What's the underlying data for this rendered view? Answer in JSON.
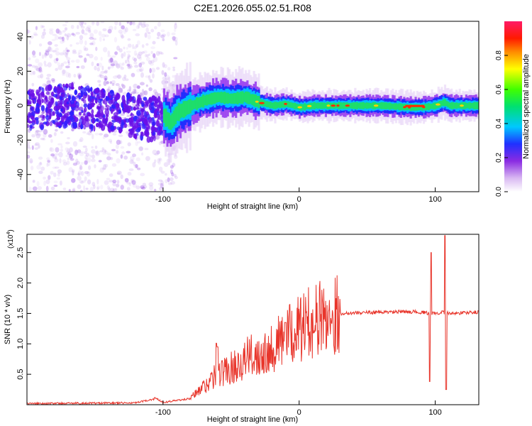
{
  "title": "C2E1.2026.055.02.51.R08",
  "chart_data": [
    {
      "type": "heatmap",
      "name": "spectrogram",
      "xlabel": "Height of straight line (km)",
      "ylabel": "Frequency (Hz)",
      "xlim": [
        -200,
        132
      ],
      "ylim": [
        -50,
        49
      ],
      "xticks": [
        -100,
        0,
        100
      ],
      "yticks": [
        -40,
        -20,
        0,
        20,
        40
      ],
      "colorbar": {
        "label": "Normalized spectral amplitude",
        "range": [
          0,
          1
        ],
        "ticks": [
          0.0,
          0.2,
          0.4,
          0.6,
          0.8
        ]
      },
      "ridge": {
        "description": "dominant frequency track",
        "x": [
          -200,
          -170,
          -140,
          -120,
          -110,
          -100,
          -95,
          -90,
          -80,
          -70,
          -60,
          -50,
          -40,
          -30,
          -20,
          -10,
          0,
          10,
          20,
          40,
          60,
          80,
          90,
          100,
          106,
          110,
          120,
          132
        ],
        "y": [
          -2,
          0,
          -2,
          -6,
          -8,
          -6,
          -10,
          -4,
          0,
          3,
          5,
          4,
          5,
          2,
          0,
          1,
          -1,
          0,
          0,
          0,
          0,
          -1,
          -1,
          0,
          2,
          0,
          0,
          0
        ]
      }
    },
    {
      "type": "line",
      "name": "snr",
      "xlabel": "Height of straight line (km)",
      "ylabel": "SNR (10 * v/v)",
      "yscale_label": "(x10",
      "yscale_exp": "4",
      "xlim": [
        -200,
        132
      ],
      "ylim": [
        0,
        2.8
      ],
      "xticks": [
        -100,
        0,
        100
      ],
      "yticks": [
        0.5,
        1.0,
        1.5,
        2.0,
        2.5
      ],
      "ytick_labels": [
        "0.5",
        "1.0",
        "1.5",
        "2.0",
        "2.5"
      ],
      "color": "#e8352b",
      "envelope_x": [
        -200,
        -120,
        -105,
        -100,
        -80,
        -75,
        -70,
        -60,
        -50,
        -40,
        -30,
        -20,
        -10,
        0,
        10,
        20,
        30,
        40,
        60,
        80,
        90,
        95,
        100,
        105,
        110,
        120,
        132
      ],
      "envelope_y": [
        0.02,
        0.03,
        0.1,
        0.04,
        0.1,
        0.2,
        0.3,
        0.5,
        0.6,
        0.75,
        0.85,
        0.95,
        1.1,
        1.25,
        1.38,
        1.45,
        1.5,
        1.51,
        1.52,
        1.53,
        1.52,
        1.5,
        1.5,
        1.52,
        1.5,
        1.51,
        1.52
      ],
      "spikes": [
        {
          "x": -106,
          "y": 0.12
        },
        {
          "x": -61,
          "y": 1.01
        },
        {
          "x": -60,
          "y": 0.95
        },
        {
          "x": -10,
          "y": 1.35
        },
        {
          "x": 9,
          "y": 1.5
        },
        {
          "x": 97,
          "y": 2.5
        },
        {
          "x": 96,
          "y": 0.38
        },
        {
          "x": 107,
          "y": 2.78
        },
        {
          "x": 108,
          "y": 0.25
        }
      ]
    }
  ]
}
